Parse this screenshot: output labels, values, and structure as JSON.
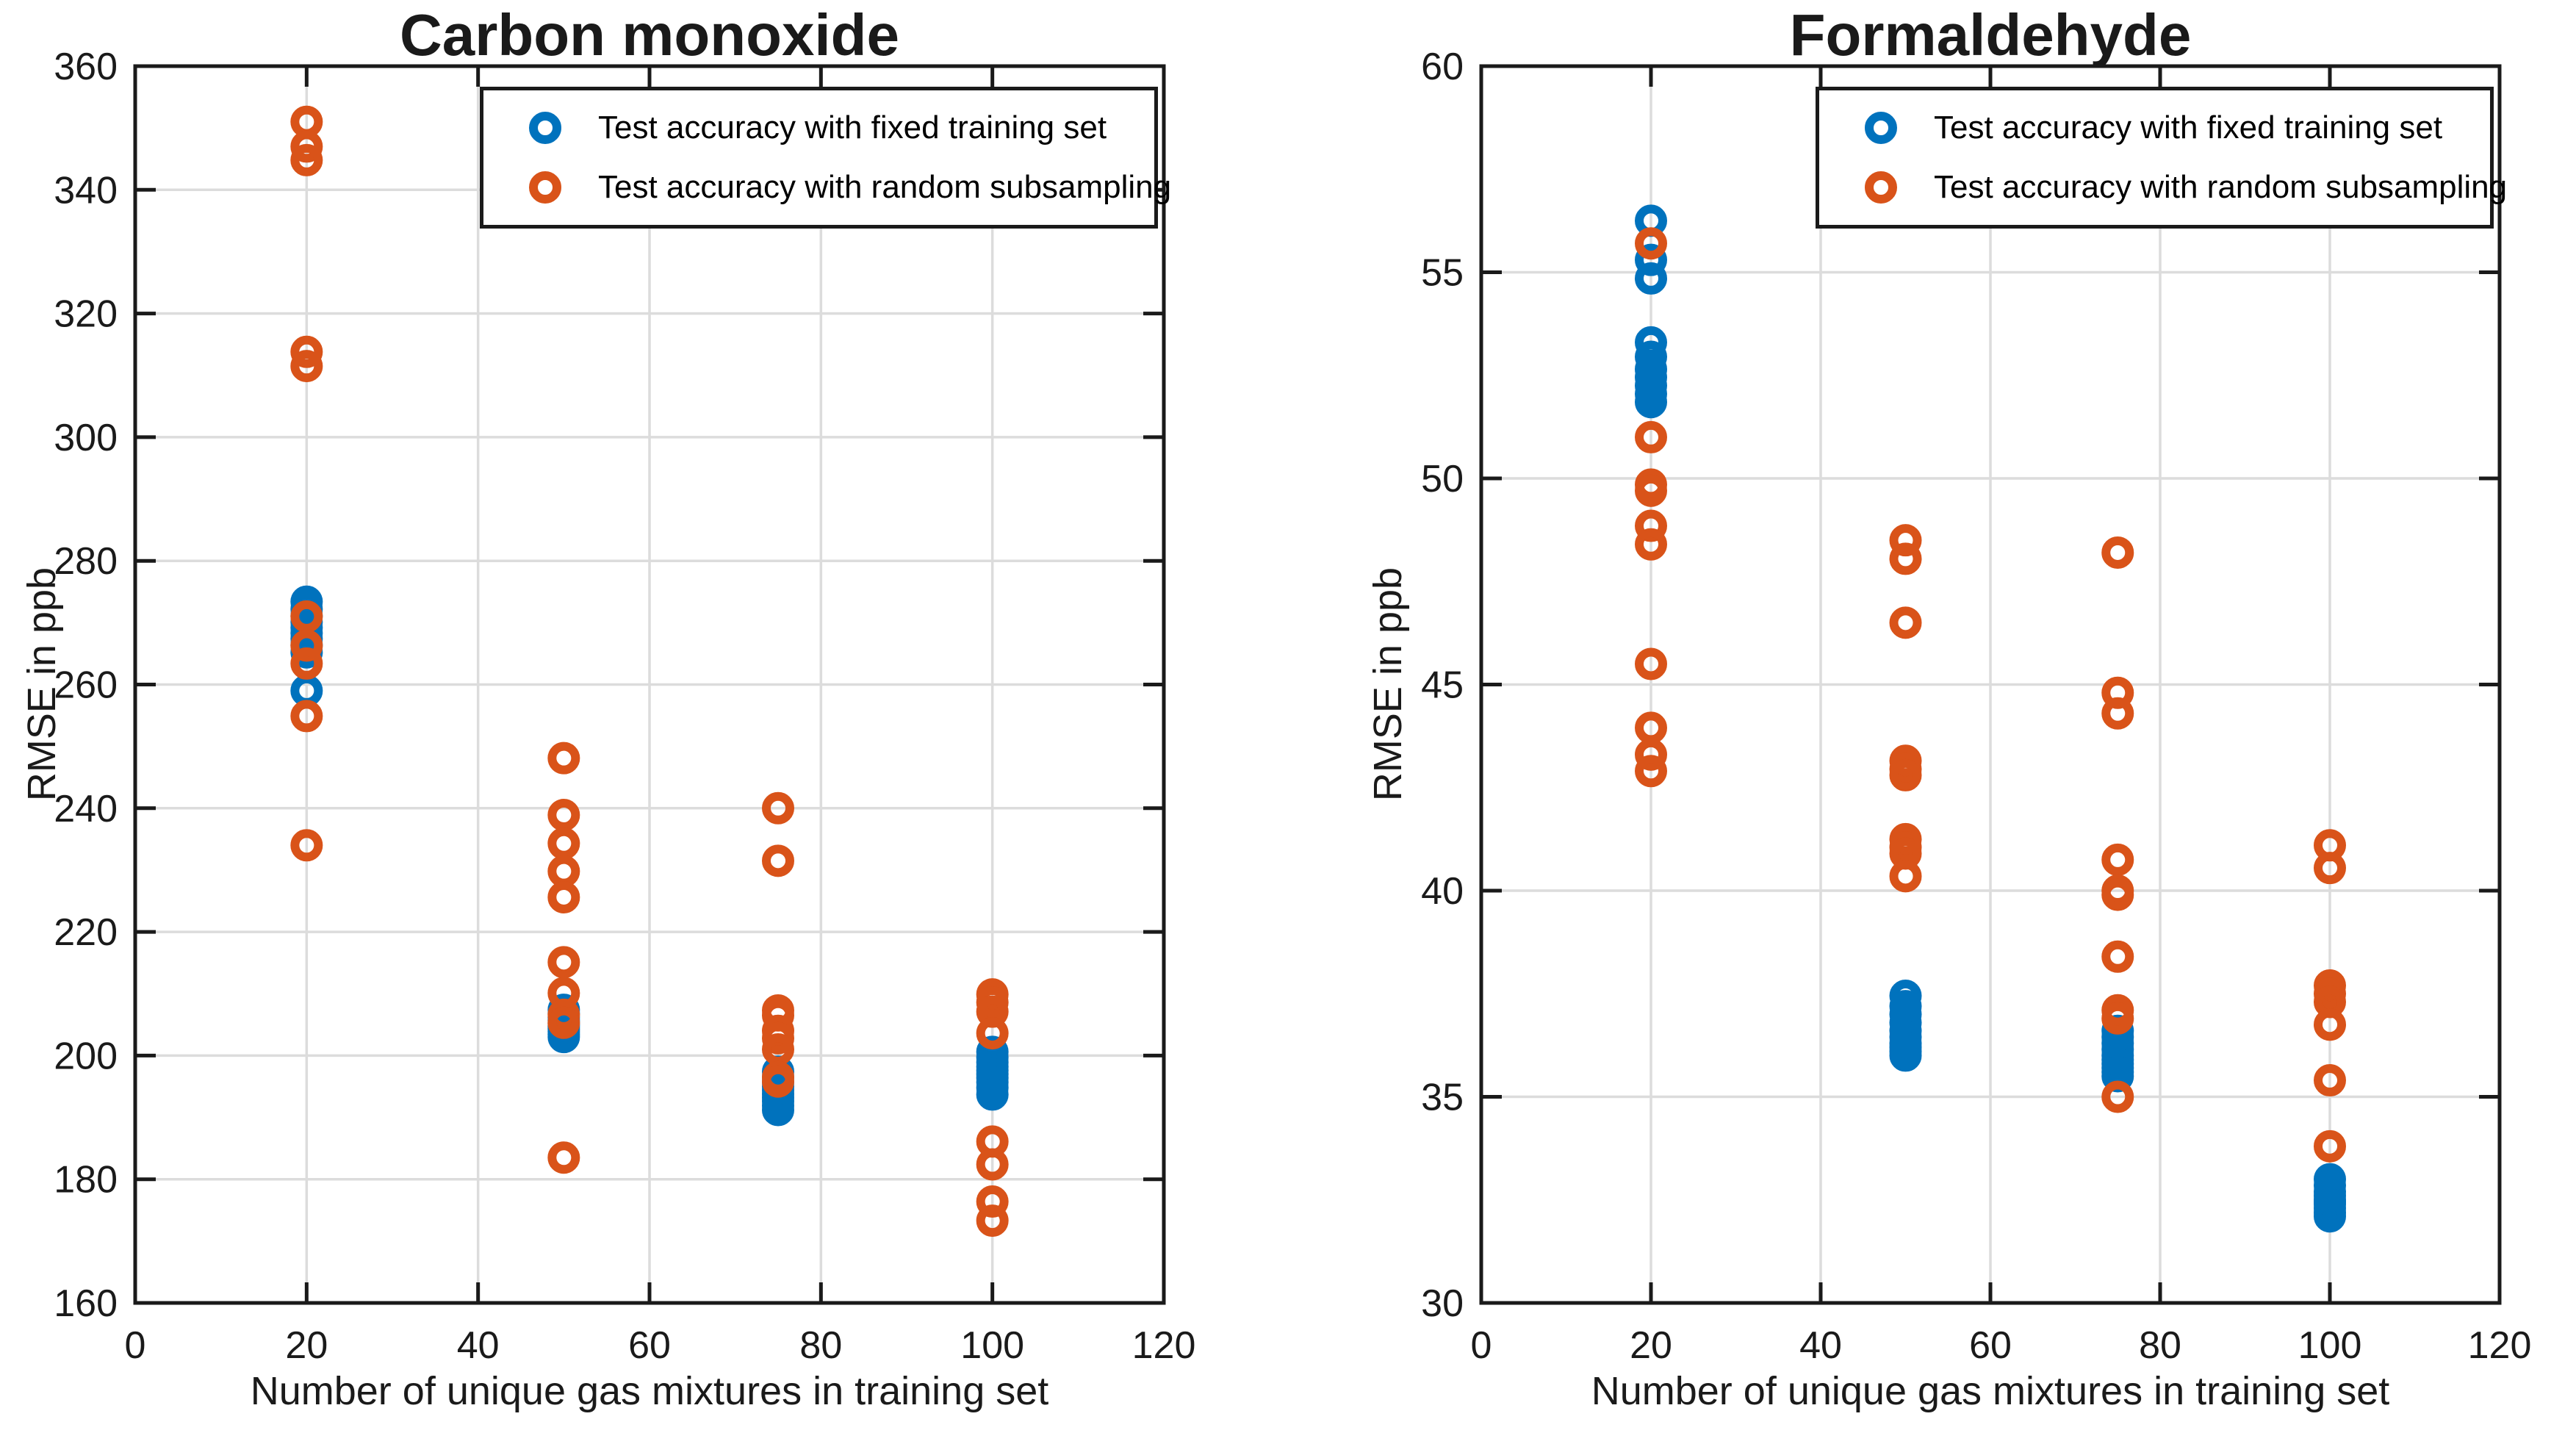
{
  "figure": {
    "background": "#ffffff",
    "accent_blue": "#0072BD",
    "accent_orange": "#D95319"
  },
  "chart_data": [
    {
      "type": "scatter",
      "title": "Carbon monoxide",
      "xlabel": "Number of unique gas mixtures in training set",
      "ylabel": "RMSE in ppb",
      "xlim": [
        0,
        120
      ],
      "ylim": [
        160,
        360
      ],
      "xticks": [
        0,
        20,
        40,
        60,
        80,
        100,
        120
      ],
      "yticks": [
        160,
        180,
        200,
        220,
        240,
        260,
        280,
        300,
        320,
        340,
        360
      ],
      "grid": true,
      "legend_position": "northeast-inside",
      "series": [
        {
          "name": "Test accuracy with fixed training set",
          "color": "#0072BD",
          "points": [
            [
              20,
              273.4
            ],
            [
              20,
              272.2
            ],
            [
              20,
              271.1
            ],
            [
              20,
              270.1
            ],
            [
              20,
              269.2
            ],
            [
              20,
              268.3
            ],
            [
              20,
              267.4
            ],
            [
              20,
              266.4
            ],
            [
              20,
              265.2
            ],
            [
              20,
              259.0
            ],
            [
              50,
              207.4
            ],
            [
              50,
              206.8
            ],
            [
              50,
              206.2
            ],
            [
              50,
              205.7
            ],
            [
              50,
              205.2
            ],
            [
              50,
              204.8
            ],
            [
              50,
              204.3
            ],
            [
              50,
              203.9
            ],
            [
              50,
              203.4
            ],
            [
              50,
              203.0
            ],
            [
              75,
              197.4
            ],
            [
              75,
              196.5
            ],
            [
              75,
              195.7
            ],
            [
              75,
              195.0
            ],
            [
              75,
              194.4
            ],
            [
              75,
              193.8
            ],
            [
              75,
              193.2
            ],
            [
              75,
              192.6
            ],
            [
              75,
              191.9
            ],
            [
              75,
              191.2
            ],
            [
              100,
              200.6
            ],
            [
              100,
              199.7
            ],
            [
              100,
              198.9
            ],
            [
              100,
              198.2
            ],
            [
              100,
              197.6
            ],
            [
              100,
              197.0
            ],
            [
              100,
              196.4
            ],
            [
              100,
              195.7
            ],
            [
              100,
              194.8
            ],
            [
              100,
              193.7
            ]
          ]
        },
        {
          "name": "Test accuracy with random subsampling",
          "color": "#D95319",
          "points": [
            [
              20,
              351.0
            ],
            [
              20,
              347.0
            ],
            [
              20,
              344.8
            ],
            [
              20,
              313.8
            ],
            [
              20,
              311.5
            ],
            [
              20,
              271.0
            ],
            [
              20,
              266.3
            ],
            [
              20,
              263.4
            ],
            [
              20,
              254.9
            ],
            [
              20,
              234.0
            ],
            [
              50,
              248.1
            ],
            [
              50,
              238.9
            ],
            [
              50,
              234.3
            ],
            [
              50,
              229.8
            ],
            [
              50,
              225.6
            ],
            [
              50,
              215.1
            ],
            [
              50,
              210.1
            ],
            [
              50,
              206.6
            ],
            [
              50,
              205.3
            ],
            [
              50,
              183.5
            ],
            [
              75,
              240.0
            ],
            [
              75,
              231.5
            ],
            [
              75,
              207.3
            ],
            [
              75,
              206.5
            ],
            [
              75,
              204.0
            ],
            [
              75,
              202.8
            ],
            [
              75,
              201.0
            ],
            [
              75,
              196.5
            ],
            [
              75,
              195.8
            ],
            [
              100,
              209.9
            ],
            [
              100,
              208.6
            ],
            [
              100,
              207.1
            ],
            [
              100,
              203.6
            ],
            [
              100,
              186.1
            ],
            [
              100,
              182.4
            ],
            [
              100,
              176.4
            ],
            [
              100,
              173.3
            ]
          ]
        }
      ]
    },
    {
      "type": "scatter",
      "title": "Formaldehyde",
      "xlabel": "Number of unique gas mixtures in training set",
      "ylabel": "RMSE in ppb",
      "xlim": [
        0,
        120
      ],
      "ylim": [
        30,
        60
      ],
      "xticks": [
        0,
        20,
        40,
        60,
        80,
        100,
        120
      ],
      "yticks": [
        30,
        35,
        40,
        45,
        50,
        55,
        60
      ],
      "grid": true,
      "legend_position": "northeast-inside",
      "series": [
        {
          "name": "Test accuracy with fixed training set",
          "color": "#0072BD",
          "points": [
            [
              20,
              56.25
            ],
            [
              20,
              55.3
            ],
            [
              20,
              54.85
            ],
            [
              20,
              53.3
            ],
            [
              20,
              52.95
            ],
            [
              20,
              52.65
            ],
            [
              20,
              52.45
            ],
            [
              20,
              52.25
            ],
            [
              20,
              52.05
            ],
            [
              20,
              51.85
            ],
            [
              50,
              37.45
            ],
            [
              50,
              37.2
            ],
            [
              50,
              37.0
            ],
            [
              50,
              36.8
            ],
            [
              50,
              36.6
            ],
            [
              50,
              36.45
            ],
            [
              50,
              36.3
            ],
            [
              50,
              36.2
            ],
            [
              50,
              36.1
            ],
            [
              50,
              36.0
            ],
            [
              75,
              36.6
            ],
            [
              75,
              36.45
            ],
            [
              75,
              36.3
            ],
            [
              75,
              36.15
            ],
            [
              75,
              36.0
            ],
            [
              75,
              35.9
            ],
            [
              75,
              35.8
            ],
            [
              75,
              35.7
            ],
            [
              75,
              35.6
            ],
            [
              75,
              35.5
            ],
            [
              100,
              33.0
            ],
            [
              100,
              32.85
            ],
            [
              100,
              32.7
            ],
            [
              100,
              32.6
            ],
            [
              100,
              32.5
            ],
            [
              100,
              32.45
            ],
            [
              100,
              32.4
            ],
            [
              100,
              32.3
            ],
            [
              100,
              32.2
            ],
            [
              100,
              32.1
            ]
          ]
        },
        {
          "name": "Test accuracy with random subsampling",
          "color": "#D95319",
          "points": [
            [
              20,
              55.7
            ],
            [
              20,
              51.0
            ],
            [
              20,
              49.85
            ],
            [
              20,
              49.7
            ],
            [
              20,
              48.85
            ],
            [
              20,
              48.4
            ],
            [
              20,
              45.5
            ],
            [
              20,
              43.95
            ],
            [
              20,
              43.3
            ],
            [
              20,
              42.9
            ],
            [
              50,
              48.5
            ],
            [
              50,
              48.05
            ],
            [
              50,
              46.5
            ],
            [
              50,
              43.15
            ],
            [
              50,
              42.95
            ],
            [
              50,
              42.8
            ],
            [
              50,
              41.25
            ],
            [
              50,
              41.05
            ],
            [
              50,
              40.9
            ],
            [
              50,
              40.35
            ],
            [
              75,
              48.2
            ],
            [
              75,
              44.8
            ],
            [
              75,
              44.3
            ],
            [
              75,
              40.75
            ],
            [
              75,
              40.0
            ],
            [
              75,
              39.9
            ],
            [
              75,
              38.4
            ],
            [
              75,
              37.1
            ],
            [
              75,
              36.9
            ],
            [
              75,
              35.0
            ],
            [
              100,
              41.1
            ],
            [
              100,
              40.55
            ],
            [
              100,
              37.7
            ],
            [
              100,
              37.5
            ],
            [
              100,
              37.3
            ],
            [
              100,
              36.75
            ],
            [
              100,
              35.4
            ],
            [
              100,
              33.8
            ]
          ]
        }
      ]
    }
  ]
}
